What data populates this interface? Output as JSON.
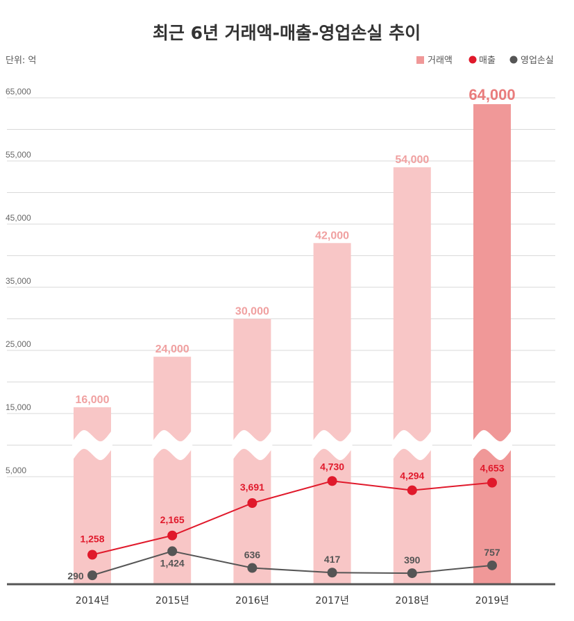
{
  "chart_data": {
    "type": "bar",
    "title": "최근 6년 거래액-매출-영업손실 추이",
    "unit_label": "단위: 억",
    "categories": [
      "2014년",
      "2015년",
      "2016년",
      "2017년",
      "2018년",
      "2019년"
    ],
    "y_ticks": [
      "5,000",
      "15,000",
      "25,000",
      "35,000",
      "45,000",
      "55,000",
      "65,000"
    ],
    "axis_break": true,
    "grid": true,
    "legend_position": "top-right",
    "series": [
      {
        "name": "거래액",
        "kind": "bar",
        "values": [
          16000,
          24000,
          30000,
          42000,
          54000,
          64000
        ],
        "labels": [
          "16,000",
          "24,000",
          "30,000",
          "42,000",
          "54,000",
          "64,000"
        ],
        "color": "#f8c6c6",
        "highlight_color": "#f09898",
        "label_color": "#f0a0a0",
        "highlight_label_color": "#e97c7c"
      },
      {
        "name": "매출",
        "kind": "line",
        "values": [
          1258,
          2165,
          3691,
          4730,
          4294,
          4653
        ],
        "labels": [
          "1,258",
          "2,165",
          "3,691",
          "4,730",
          "4,294",
          "4,653"
        ],
        "color": "#e0192b"
      },
      {
        "name": "영업손실",
        "kind": "line",
        "values": [
          290,
          1424,
          636,
          417,
          390,
          757
        ],
        "labels": [
          "290",
          "1,424",
          "636",
          "417",
          "390",
          "757"
        ],
        "color": "#555555"
      }
    ]
  }
}
